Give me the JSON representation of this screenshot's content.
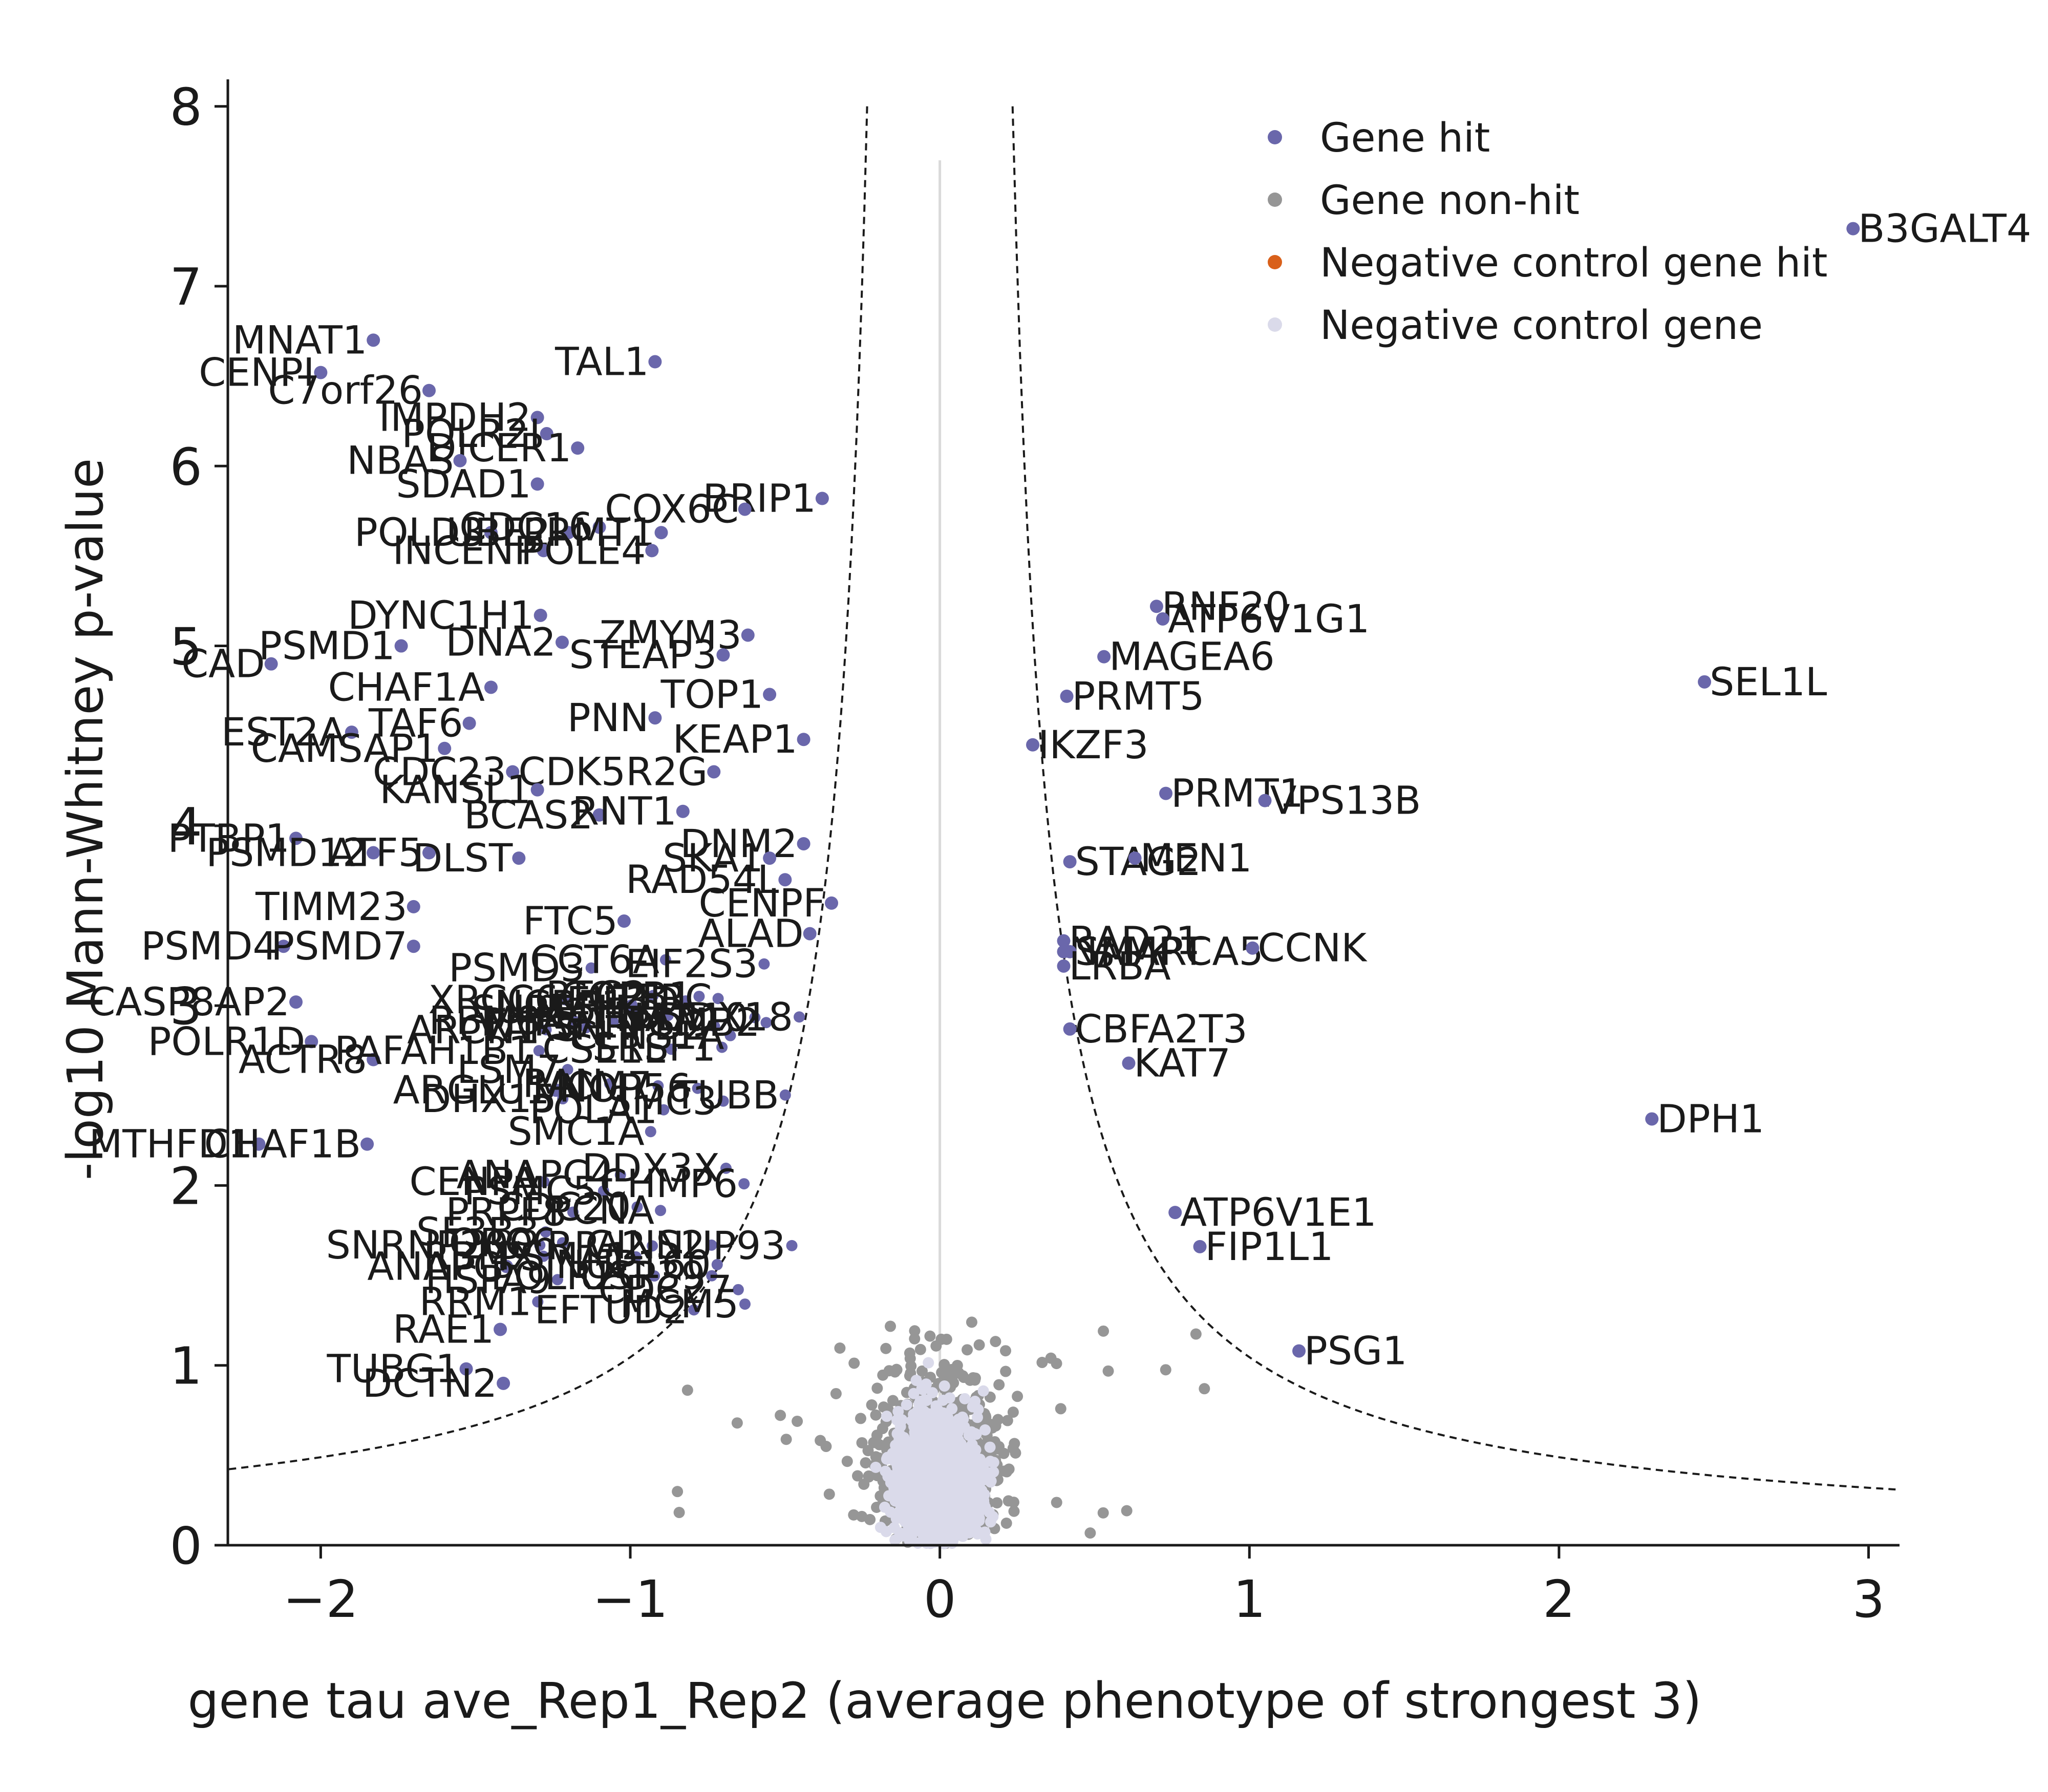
{
  "chart_data": {
    "type": "scatter",
    "title": "",
    "xlabel": "gene tau ave_Rep1_Rep2 (average phenotype of strongest 3)",
    "ylabel": "-log10 Mann-Whitney p-value",
    "xlim": [
      -2.3,
      3.1
    ],
    "ylim": [
      0,
      8.15
    ],
    "xticks": [
      -2,
      -1,
      0,
      1,
      2,
      3
    ],
    "xtick_labels": [
      "−2",
      "−1",
      "0",
      "1",
      "2",
      "3"
    ],
    "yticks": [
      0,
      1,
      2,
      3,
      4,
      5,
      6,
      7,
      8
    ],
    "ytick_labels": [
      "0",
      "1",
      "2",
      "3",
      "4",
      "5",
      "6",
      "7",
      "8"
    ],
    "grid": false,
    "legend_position": "top-right",
    "threshold_curve": {
      "style": "dashed",
      "offset_x": 0.12,
      "constant": 0.92
    },
    "colors": {
      "gene_hit": "#6a67ab",
      "gene_nonhit": "#969696",
      "neg_hit": "#d9601a",
      "neg_control": "#dadaea",
      "axis": "#1a1a1a",
      "zero_line": "#d9d9d9"
    },
    "series": [
      {
        "name": "Gene hit",
        "color": "#6a67ab"
      },
      {
        "name": "Gene non-hit",
        "color": "#969696"
      },
      {
        "name": "Negative control gene hit",
        "color": "#d9601a"
      },
      {
        "name": "Negative control gene",
        "color": "#dadaea"
      }
    ],
    "labeled_hits": [
      {
        "label": "B3GALT4",
        "x": 2.95,
        "y": 7.32
      },
      {
        "label": "MNAT1",
        "x": -1.83,
        "y": 6.7
      },
      {
        "label": "CENPI",
        "x": -2.0,
        "y": 6.52
      },
      {
        "label": "C7orf26",
        "x": -1.65,
        "y": 6.42
      },
      {
        "label": "TAL1",
        "x": -0.92,
        "y": 6.58
      },
      {
        "label": "IMPDH2",
        "x": -1.3,
        "y": 6.27
      },
      {
        "label": "POLR2I",
        "x": -1.27,
        "y": 6.18
      },
      {
        "label": "DICER1",
        "x": -1.17,
        "y": 6.1
      },
      {
        "label": "NBAS",
        "x": -1.55,
        "y": 6.03
      },
      {
        "label": "SDAD1",
        "x": -1.3,
        "y": 5.9
      },
      {
        "label": "BRIP1",
        "x": -0.38,
        "y": 5.82
      },
      {
        "label": "COX6C",
        "x": -0.63,
        "y": 5.76
      },
      {
        "label": "POLD3",
        "x": -1.45,
        "y": 5.63
      },
      {
        "label": "UBE2I",
        "x": -1.2,
        "y": 5.63
      },
      {
        "label": "CDC16",
        "x": -1.1,
        "y": 5.66
      },
      {
        "label": "PRMT1",
        "x": -0.9,
        "y": 5.63
      },
      {
        "label": "INCENP",
        "x": -1.28,
        "y": 5.53
      },
      {
        "label": "POLE4",
        "x": -0.93,
        "y": 5.53
      },
      {
        "label": "DYNC1H1",
        "x": -1.29,
        "y": 5.17
      },
      {
        "label": "ZMYM3",
        "x": -0.62,
        "y": 5.06
      },
      {
        "label": "PSMD1",
        "x": -1.74,
        "y": 5.0
      },
      {
        "label": "DNA2",
        "x": -1.22,
        "y": 5.02
      },
      {
        "label": "STEAP3",
        "x": -0.7,
        "y": 4.95
      },
      {
        "label": "CAD",
        "x": -2.16,
        "y": 4.9
      },
      {
        "label": "CHAF1A",
        "x": -1.45,
        "y": 4.77
      },
      {
        "label": "TOP1",
        "x": -0.55,
        "y": 4.73
      },
      {
        "label": "TAF6",
        "x": -1.52,
        "y": 4.57
      },
      {
        "label": "PNN",
        "x": -0.92,
        "y": 4.6
      },
      {
        "label": "KEAP1",
        "x": -0.44,
        "y": 4.48
      },
      {
        "label": "EST2A",
        "x": -1.9,
        "y": 4.52
      },
      {
        "label": "CAMSAP1",
        "x": -1.6,
        "y": 4.43
      },
      {
        "label": "CDC23",
        "x": -1.38,
        "y": 4.3
      },
      {
        "label": "CDK5R2G",
        "x": -0.73,
        "y": 4.3
      },
      {
        "label": "KANSL1",
        "x": -1.3,
        "y": 4.2
      },
      {
        "label": "BCAS2",
        "x": -1.1,
        "y": 4.06
      },
      {
        "label": "RNT1",
        "x": -0.83,
        "y": 4.08
      },
      {
        "label": "DNM2",
        "x": -0.44,
        "y": 3.9
      },
      {
        "label": "PTBP1",
        "x": -2.08,
        "y": 3.93
      },
      {
        "label": "PSMD12",
        "x": -1.83,
        "y": 3.85
      },
      {
        "label": "ATF5",
        "x": -1.65,
        "y": 3.85
      },
      {
        "label": "DLST",
        "x": -1.36,
        "y": 3.82
      },
      {
        "label": "SKA1",
        "x": -0.55,
        "y": 3.82
      },
      {
        "label": "RAD54L",
        "x": -0.5,
        "y": 3.7
      },
      {
        "label": "CENPF",
        "x": -0.35,
        "y": 3.57
      },
      {
        "label": "TIMM23",
        "x": -1.7,
        "y": 3.55
      },
      {
        "label": "FTC5",
        "x": -1.02,
        "y": 3.47
      },
      {
        "label": "ALAD",
        "x": -0.42,
        "y": 3.4
      },
      {
        "label": "PSMD4",
        "x": -2.12,
        "y": 3.33
      },
      {
        "label": "PSMD7",
        "x": -1.7,
        "y": 3.33
      },
      {
        "label": "POLR1D",
        "x": -2.03,
        "y": 2.8
      },
      {
        "label": "CASP8AP2",
        "x": -2.08,
        "y": 3.02
      },
      {
        "label": "ACTR8",
        "x": -1.83,
        "y": 2.7
      },
      {
        "label": "ARGLU1",
        "x": -1.24,
        "y": 2.53
      },
      {
        "label": "MTHFD1",
        "x": -2.2,
        "y": 2.23
      },
      {
        "label": "CHAF1B",
        "x": -1.85,
        "y": 2.23
      },
      {
        "label": "ANAPC",
        "x": -1.4,
        "y": 1.55
      },
      {
        "label": "RAE1",
        "x": -1.42,
        "y": 1.2
      },
      {
        "label": "TUBG1",
        "x": -1.53,
        "y": 0.98
      },
      {
        "label": "DCTN2",
        "x": -1.41,
        "y": 0.9
      },
      {
        "label": "RNF20",
        "x": 0.7,
        "y": 5.22
      },
      {
        "label": "ATP6V1G1",
        "x": 0.72,
        "y": 5.15
      },
      {
        "label": "MAGEA6",
        "x": 0.53,
        "y": 4.94
      },
      {
        "label": "PRMT5",
        "x": 0.41,
        "y": 4.72
      },
      {
        "label": "SEL1L",
        "x": 2.47,
        "y": 4.8
      },
      {
        "label": "IKZF3",
        "x": 0.3,
        "y": 4.45
      },
      {
        "label": "PRMT1",
        "x": 0.73,
        "y": 4.18
      },
      {
        "label": "VPS13B",
        "x": 1.05,
        "y": 4.14
      },
      {
        "label": "STAG2",
        "x": 0.42,
        "y": 3.8
      },
      {
        "label": "MEN1",
        "x": 0.63,
        "y": 3.82
      },
      {
        "label": "RAD21",
        "x": 0.4,
        "y": 3.36
      },
      {
        "label": "NAMPT",
        "x": 0.4,
        "y": 3.3
      },
      {
        "label": "SMARCA5",
        "x": 0.42,
        "y": 3.3
      },
      {
        "label": "LRBA",
        "x": 0.4,
        "y": 3.22
      },
      {
        "label": "CCNK",
        "x": 1.01,
        "y": 3.32
      },
      {
        "label": "CBFA2T3",
        "x": 0.42,
        "y": 2.87
      },
      {
        "label": "KAT7",
        "x": 0.61,
        "y": 2.68
      },
      {
        "label": "DPH1",
        "x": 2.3,
        "y": 2.37
      },
      {
        "label": "ATP6V1E1",
        "x": 0.76,
        "y": 1.85
      },
      {
        "label": "FIP1L1",
        "x": 0.84,
        "y": 1.66
      },
      {
        "label": "PSG1",
        "x": 1.16,
        "y": 1.08
      }
    ],
    "dense_region_labels": [
      "PSMA1",
      "CCT6A",
      "SNRPD2",
      "MCM7",
      "MCM5",
      "DDX3X",
      "RBM8A",
      "POLR2G",
      "NOP56",
      "EIF3D",
      "SF3B3",
      "PHF5A",
      "CDC27",
      "RPA2",
      "SMC3",
      "NUP93",
      "TUBB",
      "PCNA",
      "PSMB2",
      "CSE1L",
      "NCBP1",
      "PRPF8",
      "RAN",
      "EIF2S3",
      "VARS",
      "HSPA9",
      "XRCC6",
      "SNRNP200",
      "ORC6",
      "RFC2",
      "CENPA",
      "CDC20",
      "SUPT5H",
      "CHMP6",
      "NUP160",
      "POLA1",
      "GINS2",
      "RRM1",
      "CLNS1A",
      "NAA10",
      "PAFAH1B1",
      "SRSF1",
      "TFRC",
      "SMC1A",
      "ANAPC4",
      "PSMC5",
      "COPB1",
      "DHX15",
      "EFTUD2",
      "LSM7",
      "RBMX",
      "NAT10",
      "DDX18",
      "USP39",
      "PSMD3",
      "ARCN1"
    ]
  }
}
